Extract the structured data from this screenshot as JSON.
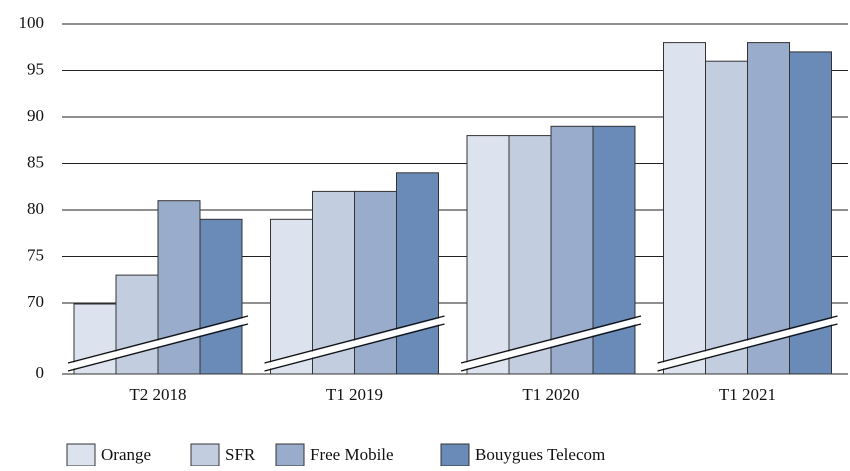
{
  "chart_data": {
    "type": "bar",
    "categories": [
      "T2 2018",
      "T1 2019",
      "T1 2020",
      "T1 2021"
    ],
    "series": [
      {
        "name": "Orange",
        "color": "#dde3ee",
        "values": [
          69,
          79,
          88,
          98
        ]
      },
      {
        "name": "SFR",
        "color": "#c3cde0",
        "values": [
          73,
          82,
          88,
          96
        ]
      },
      {
        "name": "Free Mobile",
        "color": "#9aaccb",
        "values": [
          81,
          82,
          89,
          98
        ]
      },
      {
        "name": "Bouygues Telecom",
        "color": "#6a8ab8",
        "values": [
          79,
          84,
          89,
          97
        ]
      }
    ],
    "ylim": [
      0,
      100
    ],
    "yticks": [
      0,
      70,
      75,
      80,
      85,
      90,
      95,
      100
    ],
    "axis_break": true,
    "grid": true,
    "legend": "bottom"
  }
}
